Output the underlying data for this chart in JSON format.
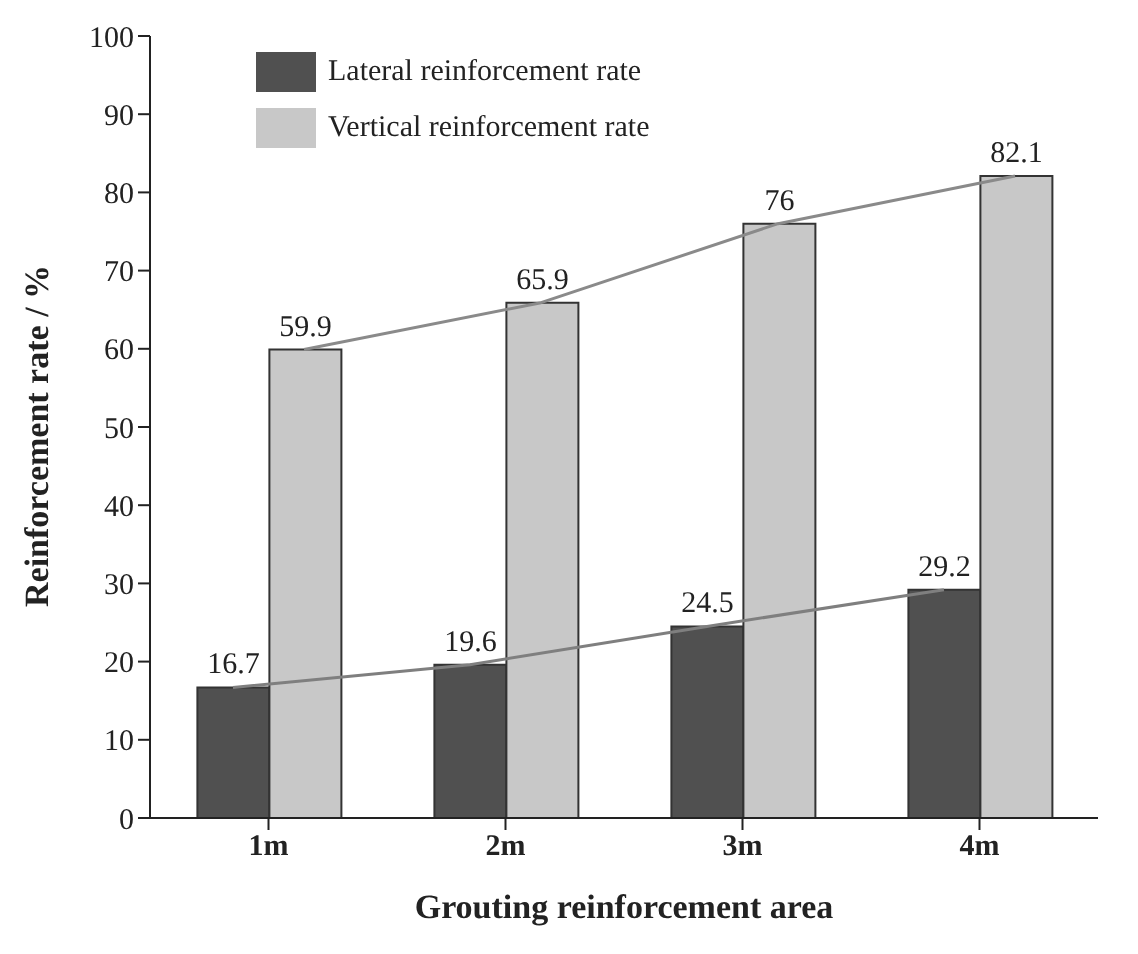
{
  "chart_data": {
    "type": "bar",
    "xlabel": "Grouting reinforcement area",
    "ylabel": "Reinforcement rate / %",
    "categories": [
      "1m",
      "2m",
      "3m",
      "4m"
    ],
    "series": [
      {
        "name": "Lateral reinforcement rate",
        "color": "#505050",
        "values": [
          16.7,
          19.6,
          24.5,
          29.2
        ],
        "value_labels": [
          "16.7",
          "19.6",
          "24.5",
          "29.2"
        ]
      },
      {
        "name": "Vertical reinforcement rate",
        "color": "#c8c8c8",
        "values": [
          59.9,
          65.9,
          76,
          82.1
        ],
        "value_labels": [
          "59.9",
          "65.9",
          "76",
          "82.1"
        ]
      },
      {
        "type": "line",
        "color": "#7f7f7f",
        "values": [
          16.7,
          19.6,
          24.5,
          29.2
        ]
      },
      {
        "type": "line",
        "color": "#8a8a8a",
        "values": [
          59.9,
          65.9,
          76,
          82.1
        ]
      }
    ],
    "ylim": [
      0,
      100
    ],
    "yticks": [
      0,
      10,
      20,
      30,
      40,
      50,
      60,
      70,
      80,
      90,
      100
    ],
    "legend": "top left"
  }
}
